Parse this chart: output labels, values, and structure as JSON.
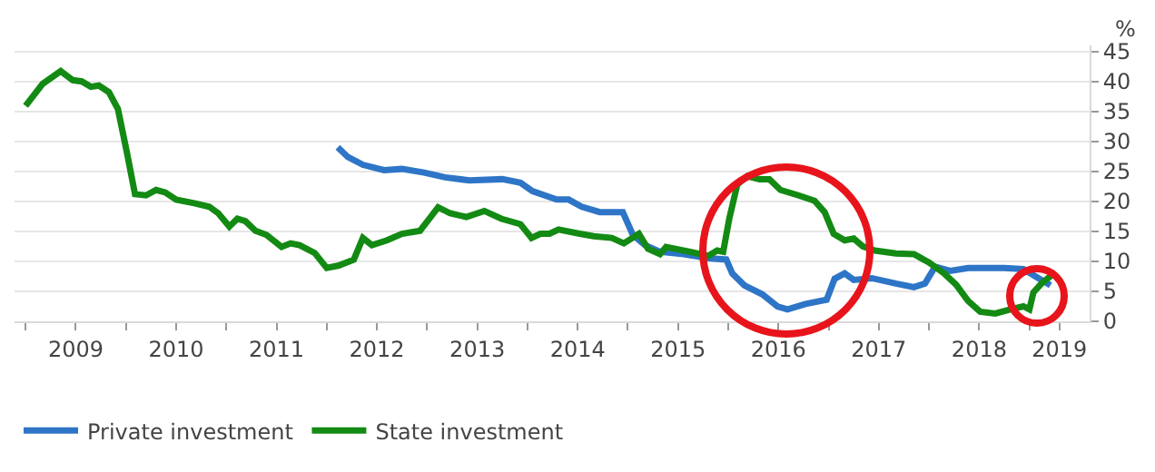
{
  "chart_data": {
    "type": "line",
    "ylabel": "%",
    "xlim": [
      2008.89,
      2019.6
    ],
    "ylim": [
      0,
      46
    ],
    "xticks": [
      {
        "value": 2009,
        "label": null
      },
      {
        "value": 2009.5,
        "label": "2009"
      },
      {
        "value": 2010,
        "label": null
      },
      {
        "value": 2010.5,
        "label": "2010"
      },
      {
        "value": 2011,
        "label": null
      },
      {
        "value": 2011.5,
        "label": "2011"
      },
      {
        "value": 2012,
        "label": null
      },
      {
        "value": 2012.5,
        "label": "2012"
      },
      {
        "value": 2013,
        "label": null
      },
      {
        "value": 2013.5,
        "label": "2013"
      },
      {
        "value": 2014,
        "label": null
      },
      {
        "value": 2014.5,
        "label": "2014"
      },
      {
        "value": 2015,
        "label": null
      },
      {
        "value": 2015.5,
        "label": "2015"
      },
      {
        "value": 2016,
        "label": null
      },
      {
        "value": 2016.5,
        "label": "2016"
      },
      {
        "value": 2017,
        "label": null
      },
      {
        "value": 2017.5,
        "label": "2017"
      },
      {
        "value": 2018,
        "label": null
      },
      {
        "value": 2018.5,
        "label": "2018"
      },
      {
        "value": 2019,
        "label": null
      },
      {
        "value": 2019.3,
        "label": "2019"
      }
    ],
    "yticks": [
      0,
      5,
      10,
      15,
      20,
      25,
      30,
      35,
      40,
      45
    ],
    "grid": "y",
    "legend": "bottom left",
    "marker": "none",
    "line_style": "solid",
    "series": [
      {
        "name": "Private investment",
        "color": "#2e75c7",
        "x": [
          2012.11,
          2012.21,
          2012.36,
          2012.57,
          2012.75,
          2012.97,
          2013.18,
          2013.42,
          2013.75,
          2013.93,
          2014.05,
          2014.29,
          2014.41,
          2014.54,
          2014.72,
          2014.95,
          2015.05,
          2015.17,
          2015.32,
          2015.56,
          2015.8,
          2015.98,
          2016.04,
          2016.16,
          2016.34,
          2016.49,
          2016.59,
          2016.77,
          2016.98,
          2017.06,
          2017.16,
          2017.25,
          2017.43,
          2017.67,
          2017.85,
          2017.96,
          2018.06,
          2018.21,
          2018.39,
          2018.75,
          2018.94,
          2019.09,
          2019.21
        ],
        "values": [
          29,
          27.4,
          26.1,
          25.2,
          25.4,
          24.8,
          24,
          23.5,
          23.7,
          23.1,
          21.7,
          20.3,
          20.3,
          19.1,
          18.2,
          18.2,
          14.4,
          12.7,
          11.6,
          11.2,
          10.5,
          10.3,
          8,
          6,
          4.5,
          2.5,
          2,
          2.9,
          3.6,
          7.1,
          8,
          6.9,
          7.2,
          6.3,
          5.7,
          6.3,
          9.1,
          8.4,
          8.9,
          8.9,
          8.7,
          7.2,
          6
        ]
      },
      {
        "name": "State investment",
        "color": "#138a13",
        "x": [
          2009,
          2009.17,
          2009.35,
          2009.47,
          2009.56,
          2009.65,
          2009.73,
          2009.83,
          2009.92,
          2010.01,
          2010.09,
          2010.2,
          2010.3,
          2010.39,
          2010.5,
          2010.68,
          2010.83,
          2010.92,
          2011.03,
          2011.11,
          2011.19,
          2011.29,
          2011.4,
          2011.55,
          2011.64,
          2011.73,
          2011.88,
          2012,
          2012.12,
          2012.27,
          2012.36,
          2012.45,
          2012.6,
          2012.75,
          2012.93,
          2013.11,
          2013.23,
          2013.39,
          2013.57,
          2013.74,
          2013.93,
          2014.04,
          2014.13,
          2014.22,
          2014.31,
          2014.52,
          2014.66,
          2014.84,
          2014.96,
          2015.11,
          2015.2,
          2015.32,
          2015.38,
          2015.62,
          2015.8,
          2015.89,
          2015.95,
          2016.01,
          2016.09,
          2016.19,
          2016.31,
          2016.41,
          2016.52,
          2016.7,
          2016.86,
          2016.96,
          2017.05,
          2017.16,
          2017.25,
          2017.34,
          2017.46,
          2017.67,
          2017.85,
          2018,
          2018.15,
          2018.27,
          2018.39,
          2018.51,
          2018.66,
          2018.81,
          2018.94,
          2019,
          2019.04,
          2019.12,
          2019.23
        ],
        "values": [
          35.9,
          39.6,
          41.7,
          40.2,
          40,
          39.1,
          39.3,
          38.2,
          35.4,
          28.1,
          21.2,
          21,
          21.9,
          21.5,
          20.3,
          19.7,
          19.1,
          18,
          15.8,
          17.1,
          16.7,
          15.1,
          14.4,
          12.4,
          13,
          12.7,
          11.4,
          8.9,
          9.3,
          10.3,
          13.9,
          12.7,
          13.5,
          14.6,
          15.1,
          19,
          18,
          17.4,
          18.4,
          17.1,
          16.2,
          13.9,
          14.6,
          14.6,
          15.3,
          14.6,
          14.2,
          13.9,
          13,
          14.6,
          12.1,
          11.2,
          12.4,
          11.6,
          10.9,
          11.8,
          11.6,
          17.1,
          22.8,
          24.2,
          23.7,
          23.7,
          21.9,
          21,
          20.1,
          18.2,
          14.6,
          13.5,
          13.8,
          12.5,
          11.8,
          11.3,
          11.2,
          9.8,
          8,
          6.1,
          3.4,
          1.6,
          1.3,
          2,
          2.5,
          2,
          4.8,
          6.3,
          7.8
        ]
      }
    ]
  }
}
